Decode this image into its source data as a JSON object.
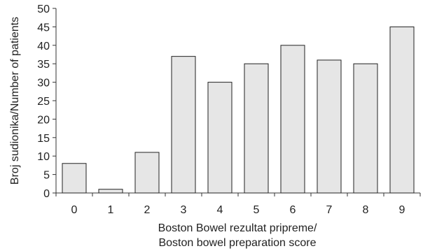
{
  "chart_data": {
    "type": "bar",
    "categories": [
      "0",
      "1",
      "2",
      "3",
      "4",
      "5",
      "6",
      "7",
      "8",
      "9"
    ],
    "values": [
      8,
      1,
      11,
      37,
      30,
      35,
      40,
      36,
      35,
      45
    ],
    "xlabel": [
      "Boston Bowel rezultat pripreme/",
      "Boston bowel preparation score"
    ],
    "ylabel": "Broj sudionika/Number of patients",
    "ylim": [
      0,
      50
    ],
    "yticks": [
      0,
      5,
      10,
      15,
      20,
      25,
      30,
      35,
      40,
      45,
      50
    ],
    "grid": false,
    "legend": "none",
    "bar_color": "#e6e6e6"
  }
}
